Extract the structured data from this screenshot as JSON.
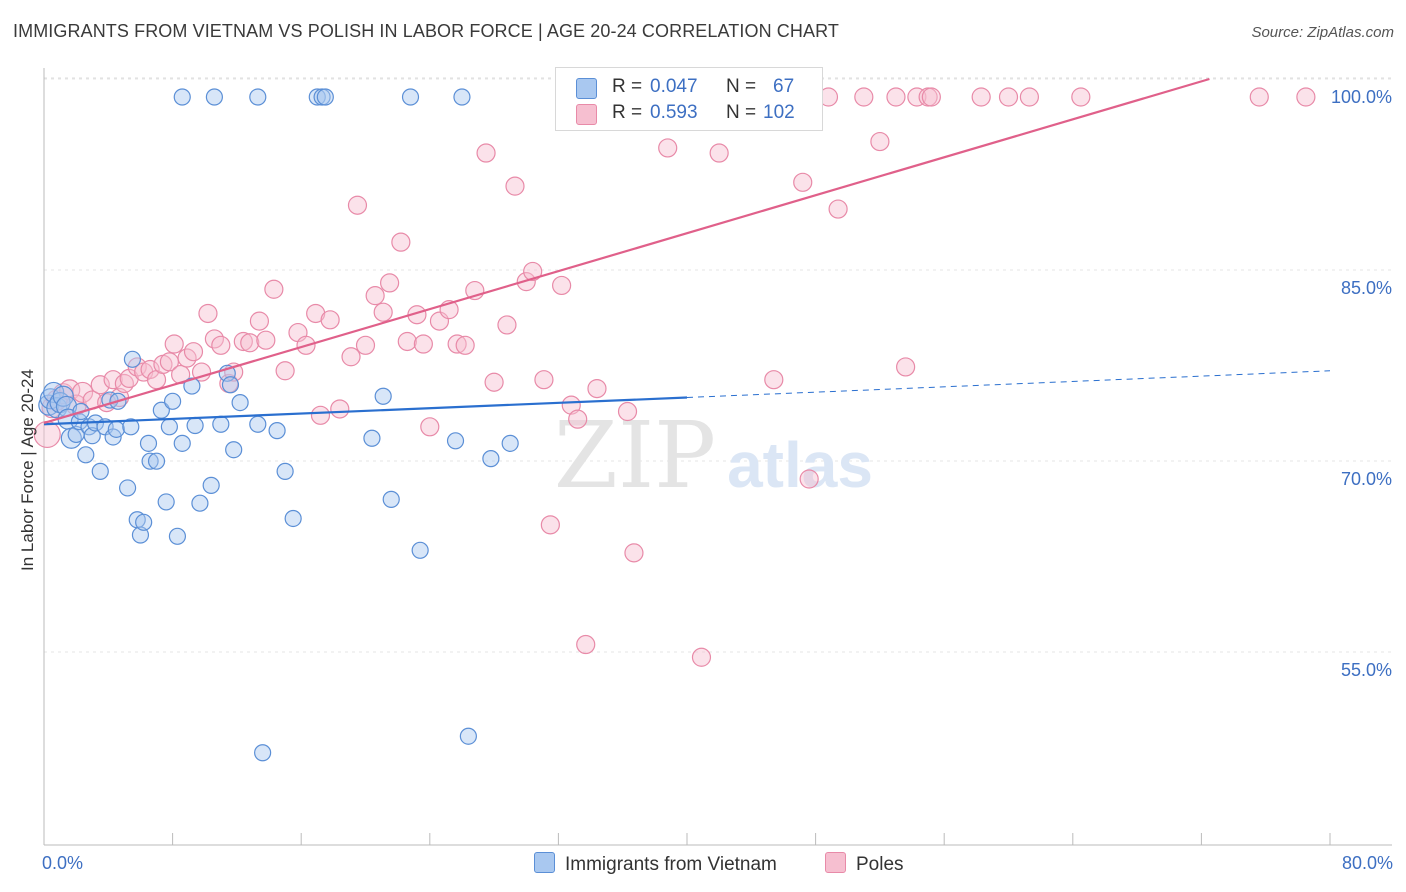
{
  "title": "IMMIGRANTS FROM VIETNAM VS POLISH IN LABOR FORCE | AGE 20-24 CORRELATION CHART",
  "source": "Source: ZipAtlas.com",
  "watermark": {
    "zip": "ZIP",
    "atlas": "atlas"
  },
  "legend": {
    "series1": {
      "r_label": "R =",
      "r_value": "0.047",
      "n_label": "N =",
      "n_value": "67"
    },
    "series2": {
      "r_label": "R =",
      "r_value": "0.593",
      "n_label": "N =",
      "n_value": "102"
    }
  },
  "bottom_legend": {
    "series1": "Immigrants from Vietnam",
    "series2": "Poles"
  },
  "chart_data": {
    "type": "scatter",
    "title": "IMMIGRANTS FROM VIETNAM VS POLISH IN LABOR FORCE | AGE 20-24 CORRELATION CHART",
    "xlabel": "",
    "ylabel": "In Labor Force | Age 20-24",
    "xlim": [
      0,
      80
    ],
    "ylim": [
      40,
      103
    ],
    "x_tick_labels": [
      "0.0%",
      "80.0%"
    ],
    "y_ticks": [
      55,
      70,
      85,
      100
    ],
    "y_tick_labels": [
      "55.0%",
      "70.0%",
      "85.0%",
      "100.0%"
    ],
    "grid": true,
    "colors": {
      "series1": "#5b8fd6",
      "series1_fill": "#a9c8f0",
      "series1_line": "#2a6fcf",
      "series2": "#e88aa8",
      "series2_fill": "#f6bfd0",
      "series2_line": "#e0608a",
      "axis_text": "#3d6fc2"
    },
    "series": [
      {
        "name": "Immigrants from Vietnam",
        "R": 0.047,
        "N": 67,
        "trend": {
          "x": [
            0,
            40
          ],
          "y": [
            74.3,
            76.4
          ],
          "dashed_to": [
            80,
            78.5
          ]
        },
        "points": [
          [
            0.3,
            75.8
          ],
          [
            0.4,
            76.3
          ],
          [
            0.6,
            76.8
          ],
          [
            0.8,
            75.6
          ],
          [
            1.0,
            76.0
          ],
          [
            1.2,
            76.5
          ],
          [
            1.4,
            75.7
          ],
          [
            1.5,
            74.7
          ],
          [
            1.7,
            73.2
          ],
          [
            2.0,
            73.5
          ],
          [
            2.2,
            74.5
          ],
          [
            2.3,
            75.3
          ],
          [
            2.6,
            71.9
          ],
          [
            2.8,
            74.1
          ],
          [
            3.0,
            73.4
          ],
          [
            3.2,
            74.4
          ],
          [
            3.5,
            70.6
          ],
          [
            3.8,
            74.1
          ],
          [
            4.1,
            76.2
          ],
          [
            4.3,
            73.3
          ],
          [
            4.5,
            73.9
          ],
          [
            4.6,
            76.1
          ],
          [
            5.2,
            69.3
          ],
          [
            5.4,
            74.1
          ],
          [
            5.5,
            79.4
          ],
          [
            5.8,
            66.8
          ],
          [
            6.0,
            65.6
          ],
          [
            6.2,
            66.6
          ],
          [
            6.5,
            72.8
          ],
          [
            6.6,
            71.4
          ],
          [
            7.0,
            71.4
          ],
          [
            7.3,
            75.4
          ],
          [
            7.6,
            68.2
          ],
          [
            7.8,
            74.1
          ],
          [
            8.0,
            76.1
          ],
          [
            8.3,
            65.5
          ],
          [
            8.6,
            72.8
          ],
          [
            9.2,
            77.3
          ],
          [
            9.4,
            74.2
          ],
          [
            9.7,
            68.1
          ],
          [
            10.4,
            69.5
          ],
          [
            10.6,
            100.0
          ],
          [
            11.0,
            74.3
          ],
          [
            11.4,
            78.3
          ],
          [
            11.6,
            77.4
          ],
          [
            11.8,
            72.3
          ],
          [
            12.2,
            76.0
          ],
          [
            13.3,
            74.3
          ],
          [
            13.6,
            48.5
          ],
          [
            14.5,
            73.8
          ],
          [
            15.0,
            70.6
          ],
          [
            15.5,
            66.9
          ],
          [
            17.0,
            100.0
          ],
          [
            17.3,
            100.0
          ],
          [
            17.5,
            100.0
          ],
          [
            20.4,
            73.2
          ],
          [
            21.1,
            76.5
          ],
          [
            21.6,
            68.4
          ],
          [
            22.8,
            100.0
          ],
          [
            23.4,
            64.4
          ],
          [
            25.6,
            73.0
          ],
          [
            26.0,
            100.0
          ],
          [
            26.4,
            49.8
          ],
          [
            27.8,
            71.6
          ],
          [
            29.0,
            72.8
          ],
          [
            8.6,
            100.0
          ],
          [
            13.3,
            100.0
          ]
        ]
      },
      {
        "name": "Poles",
        "R": 0.593,
        "N": 102,
        "trend": {
          "x": [
            0,
            72.5
          ],
          "y": [
            74.4,
            100.0
          ]
        },
        "points": [
          [
            0.2,
            73.5
          ],
          [
            0.5,
            75.6
          ],
          [
            0.8,
            76.2
          ],
          [
            1.2,
            76.7
          ],
          [
            1.6,
            77.0
          ],
          [
            2.0,
            75.8
          ],
          [
            2.4,
            76.8
          ],
          [
            3.0,
            76.2
          ],
          [
            3.5,
            77.4
          ],
          [
            3.9,
            76.0
          ],
          [
            4.3,
            77.8
          ],
          [
            4.7,
            76.4
          ],
          [
            5.0,
            77.5
          ],
          [
            5.3,
            77.9
          ],
          [
            5.8,
            78.8
          ],
          [
            6.2,
            78.4
          ],
          [
            6.6,
            78.6
          ],
          [
            7.0,
            77.8
          ],
          [
            7.4,
            79.0
          ],
          [
            7.8,
            79.2
          ],
          [
            8.1,
            80.6
          ],
          [
            8.5,
            78.2
          ],
          [
            8.9,
            79.5
          ],
          [
            9.3,
            80.0
          ],
          [
            9.8,
            78.4
          ],
          [
            10.2,
            83.0
          ],
          [
            10.6,
            81.0
          ],
          [
            11.0,
            80.5
          ],
          [
            11.5,
            77.5
          ],
          [
            11.8,
            78.4
          ],
          [
            12.4,
            80.8
          ],
          [
            12.8,
            80.7
          ],
          [
            13.4,
            82.4
          ],
          [
            13.8,
            80.9
          ],
          [
            14.3,
            84.9
          ],
          [
            15.0,
            78.5
          ],
          [
            15.8,
            81.5
          ],
          [
            16.3,
            80.5
          ],
          [
            16.9,
            83.0
          ],
          [
            17.2,
            75.0
          ],
          [
            17.8,
            82.5
          ],
          [
            18.4,
            75.5
          ],
          [
            19.1,
            79.6
          ],
          [
            19.5,
            91.5
          ],
          [
            20.0,
            80.5
          ],
          [
            20.6,
            84.4
          ],
          [
            21.1,
            83.1
          ],
          [
            21.5,
            85.4
          ],
          [
            22.2,
            88.6
          ],
          [
            22.6,
            80.8
          ],
          [
            23.2,
            82.9
          ],
          [
            23.6,
            80.6
          ],
          [
            24.0,
            74.1
          ],
          [
            24.6,
            82.4
          ],
          [
            25.2,
            83.3
          ],
          [
            25.7,
            80.6
          ],
          [
            26.2,
            80.5
          ],
          [
            26.8,
            84.8
          ],
          [
            27.5,
            95.6
          ],
          [
            28.0,
            77.6
          ],
          [
            28.8,
            82.1
          ],
          [
            29.3,
            93.0
          ],
          [
            30.0,
            85.5
          ],
          [
            30.4,
            86.3
          ],
          [
            31.1,
            77.8
          ],
          [
            31.5,
            66.4
          ],
          [
            32.2,
            85.2
          ],
          [
            32.8,
            75.8
          ],
          [
            33.2,
            74.7
          ],
          [
            33.7,
            57.0
          ],
          [
            34.4,
            77.1
          ],
          [
            36.3,
            75.3
          ],
          [
            36.7,
            64.2
          ],
          [
            38.0,
            100.0
          ],
          [
            38.8,
            96.0
          ],
          [
            39.3,
            100.0
          ],
          [
            40.9,
            56.0
          ],
          [
            41.3,
            100.0
          ],
          [
            42.0,
            95.6
          ],
          [
            43.0,
            100.0
          ],
          [
            44.6,
            100.0
          ],
          [
            45.4,
            77.8
          ],
          [
            46.0,
            100.0
          ],
          [
            47.2,
            93.3
          ],
          [
            47.6,
            70.0
          ],
          [
            48.8,
            100.0
          ],
          [
            49.4,
            91.2
          ],
          [
            51.0,
            100.0
          ],
          [
            52.0,
            96.5
          ],
          [
            53.0,
            100.0
          ],
          [
            53.6,
            78.8
          ],
          [
            54.3,
            100.0
          ],
          [
            55.0,
            100.0
          ],
          [
            55.2,
            100.0
          ],
          [
            58.3,
            100.0
          ],
          [
            60.0,
            100.0
          ],
          [
            61.3,
            100.0
          ],
          [
            64.5,
            100.0
          ],
          [
            75.6,
            100.0
          ],
          [
            78.5,
            100.0
          ],
          [
            33.3,
            100.0
          ],
          [
            36.3,
            100.0
          ]
        ]
      }
    ]
  }
}
